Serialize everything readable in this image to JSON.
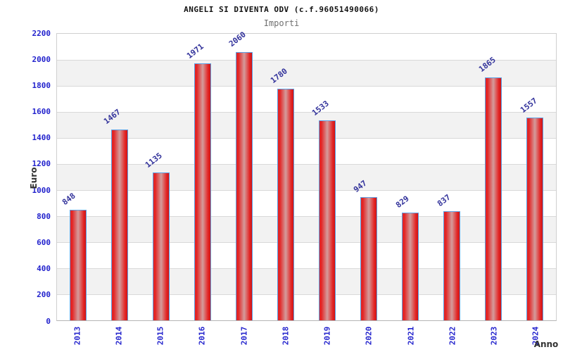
{
  "header": {
    "title": "ANGELI SI DIVENTA ODV (c.f.96051490066)",
    "subtitle": "Importi"
  },
  "chart_data": {
    "type": "bar",
    "title": "ANGELI SI DIVENTA ODV (c.f.96051490066)",
    "subtitle": "Importi",
    "xlabel": "Anno",
    "ylabel": "Euro",
    "categories": [
      "2013",
      "2014",
      "2015",
      "2016",
      "2017",
      "2018",
      "2019",
      "2020",
      "2021",
      "2022",
      "2023",
      "2024"
    ],
    "values": [
      848,
      1467,
      1135,
      1971,
      2060,
      1780,
      1533,
      947,
      829,
      837,
      1865,
      1557
    ],
    "ylim": [
      0,
      2200
    ],
    "ytick_step": 200,
    "yticks": [
      0,
      200,
      400,
      600,
      800,
      1000,
      1200,
      1400,
      1600,
      1800,
      2000,
      2200
    ],
    "grid": "horizontal gridlines with alternating white/gray bands",
    "legend": "none",
    "colors": {
      "bar_edge": "#e32525",
      "bar_edge_dark": "#cf1414",
      "bar_highlight": "#d49c9c",
      "bar_border": "#5c9fe3",
      "tick_label": "#2323cd",
      "value_label": "#32329b",
      "title": "#111111",
      "subtitle": "#707070",
      "axis_label": "#333333",
      "band_gray": "#f2f2f2",
      "gridline": "#d9d9d9"
    }
  }
}
